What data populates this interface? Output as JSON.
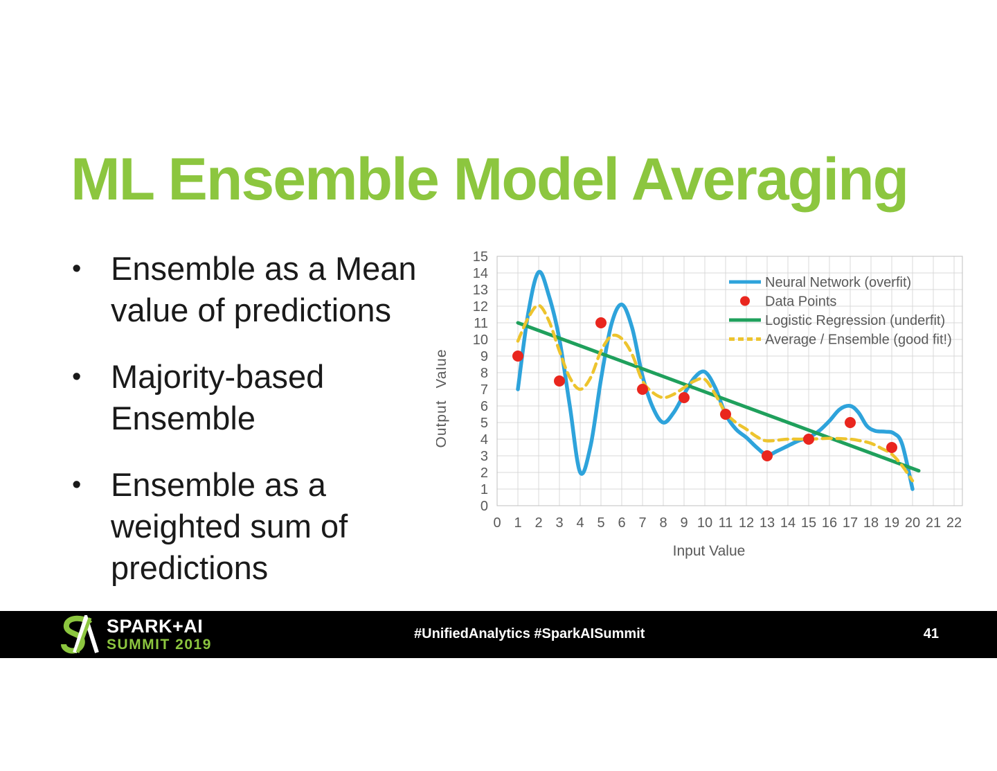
{
  "slide": {
    "title": "ML Ensemble Model Averaging",
    "title_color": "#8CC63F",
    "bullet_char": "•",
    "bullets": [
      {
        "lines": [
          "Ensemble as a Mean",
          "value of predictions"
        ]
      },
      {
        "lines": [
          "Majority-based",
          "Ensemble"
        ]
      },
      {
        "lines": [
          "Ensemble as a",
          "weighted sum of",
          "predictions"
        ]
      }
    ]
  },
  "chart_data": {
    "type": "line",
    "title": "",
    "xlabel": "Input Value",
    "ylabel": "Output Value",
    "xlim": [
      0,
      22
    ],
    "ylim": [
      0,
      15
    ],
    "x_ticks": [
      0,
      1,
      2,
      3,
      4,
      5,
      6,
      7,
      8,
      9,
      10,
      11,
      12,
      13,
      14,
      15,
      16,
      17,
      18,
      19,
      20,
      21,
      22
    ],
    "y_ticks": [
      0,
      1,
      2,
      3,
      4,
      5,
      6,
      7,
      8,
      9,
      10,
      11,
      12,
      13,
      14,
      15
    ],
    "grid": true,
    "grid_color": "#D9D9D9",
    "border_color": "#BFBFBF",
    "axis_text_color": "#595959",
    "legend_position": "top-right",
    "series": [
      {
        "name": "Neural Network (overfit)",
        "kind": "spline",
        "color": "#2EA3DB",
        "width": 5.5,
        "dash": "solid",
        "points": [
          [
            1,
            7
          ],
          [
            1.5,
            11.6
          ],
          [
            2,
            14.05
          ],
          [
            2.5,
            12.6
          ],
          [
            3,
            10
          ],
          [
            3.5,
            6
          ],
          [
            4,
            2
          ],
          [
            4.5,
            3.6
          ],
          [
            5,
            7.6
          ],
          [
            5.5,
            10.9
          ],
          [
            6,
            12.1
          ],
          [
            6.5,
            10.7
          ],
          [
            7,
            7.8
          ],
          [
            7.5,
            5.9
          ],
          [
            8,
            5
          ],
          [
            8.5,
            5.6
          ],
          [
            9,
            6.7
          ],
          [
            9.5,
            7.7
          ],
          [
            10,
            8.05
          ],
          [
            10.5,
            7.1
          ],
          [
            11,
            5.5
          ],
          [
            11.5,
            4.6
          ],
          [
            12,
            4.1
          ],
          [
            12.5,
            3.5
          ],
          [
            13,
            3.05
          ],
          [
            13.5,
            3.3
          ],
          [
            14,
            3.6
          ],
          [
            14.5,
            3.9
          ],
          [
            15,
            4.1
          ],
          [
            15.5,
            4.5
          ],
          [
            16,
            5.1
          ],
          [
            16.5,
            5.8
          ],
          [
            17,
            6
          ],
          [
            17.4,
            5.6
          ],
          [
            17.8,
            4.8
          ],
          [
            18.2,
            4.5
          ],
          [
            18.7,
            4.45
          ],
          [
            19.1,
            4.35
          ],
          [
            19.5,
            3.7
          ],
          [
            20,
            1
          ]
        ]
      },
      {
        "name": "Data Points",
        "kind": "scatter",
        "color": "#E9261E",
        "radius": 8,
        "points": [
          [
            1,
            9
          ],
          [
            3,
            7.5
          ],
          [
            5,
            11
          ],
          [
            7,
            7
          ],
          [
            9,
            6.5
          ],
          [
            11,
            5.5
          ],
          [
            13,
            3
          ],
          [
            15,
            4
          ],
          [
            17,
            5
          ],
          [
            19,
            3.5
          ]
        ]
      },
      {
        "name": "Logistic Regression (underfit)",
        "kind": "line",
        "color": "#1FA05C",
        "width": 5,
        "dash": "solid",
        "points": [
          [
            1,
            11
          ],
          [
            20.3,
            2.1
          ]
        ]
      },
      {
        "name": "Average / Ensemble (good fit!)",
        "kind": "spline",
        "color": "#EDC42E",
        "width": 4.5,
        "dash": "dashed",
        "points": [
          [
            1,
            9.9
          ],
          [
            1.5,
            11.3
          ],
          [
            2,
            12.05
          ],
          [
            2.5,
            11.1
          ],
          [
            3,
            9.3
          ],
          [
            3.5,
            7.7
          ],
          [
            4,
            7
          ],
          [
            4.5,
            7.7
          ],
          [
            5,
            9.3
          ],
          [
            5.5,
            10.2
          ],
          [
            6,
            10.05
          ],
          [
            6.5,
            9.1
          ],
          [
            7,
            7.5
          ],
          [
            7.5,
            6.8
          ],
          [
            8,
            6.5
          ],
          [
            8.5,
            6.7
          ],
          [
            9,
            7.1
          ],
          [
            9.5,
            7.5
          ],
          [
            10,
            7.6
          ],
          [
            10.5,
            6.7
          ],
          [
            11,
            5.6
          ],
          [
            11.5,
            5
          ],
          [
            12,
            4.6
          ],
          [
            12.5,
            4.15
          ],
          [
            13,
            3.9
          ],
          [
            14,
            4
          ],
          [
            15,
            4
          ],
          [
            16,
            4.05
          ],
          [
            17,
            4
          ],
          [
            17.5,
            3.9
          ],
          [
            18,
            3.75
          ],
          [
            18.5,
            3.45
          ],
          [
            19,
            3.1
          ],
          [
            19.5,
            2.4
          ],
          [
            20,
            1.5
          ]
        ]
      }
    ]
  },
  "footer": {
    "bar_color": "#000000",
    "accent_green": "#8CC63F",
    "logo_primary": "SPARK+AI",
    "logo_secondary": "SUMMIT 2019",
    "hashtags": "#UnifiedAnalytics #SparkAISummit",
    "page_number": "41"
  }
}
